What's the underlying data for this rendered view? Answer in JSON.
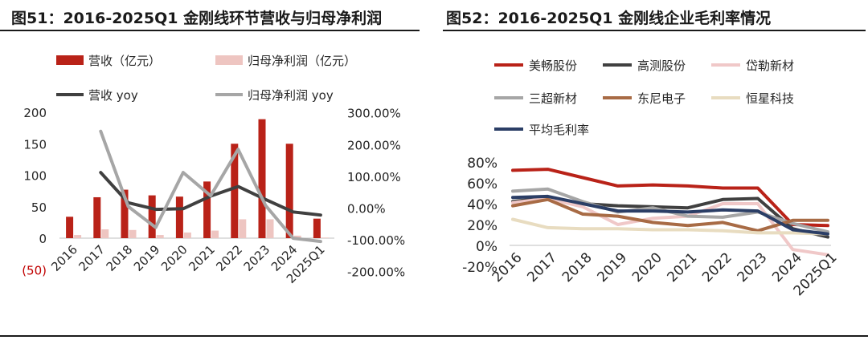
{
  "panels": {
    "left": {
      "title": "图51：2016-2025Q1 金刚线环节营收与归母净利润"
    },
    "right": {
      "title": "图52：2016-2025Q1 金刚线企业毛利率情况"
    }
  },
  "chart_data": [
    {
      "type": "bar",
      "title": "图51：2016-2025Q1 金刚线环节营收与归母净利润",
      "categories": [
        "2016",
        "2017",
        "2018",
        "2019",
        "2020",
        "2021",
        "2022",
        "2023",
        "2024",
        "2025Q1"
      ],
      "left_axis": {
        "ylim": [
          -50,
          200
        ],
        "ticks": [
          -50,
          0,
          50,
          100,
          150,
          200
        ],
        "tick_labels": [
          "(50)",
          "0",
          "50",
          "100",
          "150",
          "200"
        ]
      },
      "right_axis": {
        "ylim": [
          -2.0,
          3.0
        ],
        "ticks": [
          -2.0,
          -1.0,
          0.0,
          1.0,
          2.0,
          3.0
        ],
        "tick_labels": [
          "-200.00%",
          "-100.00%",
          "0.00%",
          "100.00%",
          "200.00%",
          "300.00%"
        ]
      },
      "bar_series": [
        {
          "name": "营收（亿元）",
          "color": "#b92218",
          "axis": "left",
          "values": [
            34,
            65,
            77,
            68,
            66,
            90,
            150,
            189,
            150,
            31
          ]
        },
        {
          "name": "归母净利润（亿元）",
          "color": "#eec5c1",
          "axis": "left",
          "values": [
            5,
            14,
            13,
            5,
            9,
            12,
            30,
            30,
            4,
            1
          ]
        }
      ],
      "line_series": [
        {
          "name": "营收 yoy",
          "color": "#404040",
          "axis": "right",
          "values": [
            null,
            1.12,
            0.17,
            -0.04,
            -0.02,
            0.38,
            0.68,
            0.27,
            -0.12,
            -0.22
          ]
        },
        {
          "name": "归母净利润 yoy",
          "color": "#a6a6a6",
          "axis": "right",
          "values": [
            null,
            2.42,
            0.05,
            -0.61,
            1.12,
            0.39,
            1.85,
            0.08,
            -0.95,
            -1.05
          ]
        }
      ],
      "legend": {
        "position": "top"
      },
      "grid": false
    },
    {
      "type": "line",
      "title": "图52：2016-2025Q1 金刚线企业毛利率情况",
      "categories": [
        "2016",
        "2017",
        "2018",
        "2019",
        "2020",
        "2021",
        "2022",
        "2023",
        "2024",
        "2025Q1"
      ],
      "ylim": [
        -0.2,
        0.8
      ],
      "ticks": [
        -0.2,
        0.0,
        0.2,
        0.4,
        0.6,
        0.8
      ],
      "tick_labels": [
        "-20%",
        "0%",
        "20%",
        "40%",
        "60%",
        "80%"
      ],
      "series": [
        {
          "name": "美畅股份",
          "color": "#b92218",
          "values": [
            0.72,
            0.73,
            0.65,
            0.57,
            0.58,
            0.57,
            0.55,
            0.55,
            0.2,
            0.19
          ]
        },
        {
          "name": "高测股份",
          "color": "#404040",
          "values": [
            0.42,
            0.46,
            0.4,
            0.38,
            0.37,
            0.36,
            0.44,
            0.45,
            0.16,
            0.08
          ]
        },
        {
          "name": "岱勒新材",
          "color": "#f0c8c8",
          "values": [
            0.41,
            0.45,
            0.37,
            0.2,
            0.26,
            0.28,
            0.4,
            0.4,
            -0.04,
            -0.09
          ]
        },
        {
          "name": "三超新材",
          "color": "#a6a6a6",
          "values": [
            0.52,
            0.54,
            0.42,
            0.32,
            0.36,
            0.28,
            0.27,
            0.32,
            0.21,
            0.13
          ]
        },
        {
          "name": "东尼电子",
          "color": "#a86b45",
          "values": [
            0.38,
            0.44,
            0.3,
            0.28,
            0.22,
            0.19,
            0.22,
            0.14,
            0.24,
            0.24
          ]
        },
        {
          "name": "恒星科技",
          "color": "#e8dcc0",
          "values": [
            0.25,
            0.17,
            0.16,
            0.16,
            0.15,
            0.15,
            0.14,
            0.12,
            0.12,
            0.11
          ]
        },
        {
          "name": "平均毛利率",
          "color": "#2b3e66",
          "values": [
            0.46,
            0.47,
            0.4,
            0.33,
            0.33,
            0.32,
            0.34,
            0.33,
            0.15,
            0.11
          ]
        }
      ],
      "legend": {
        "position": "top"
      },
      "grid": false
    }
  ]
}
